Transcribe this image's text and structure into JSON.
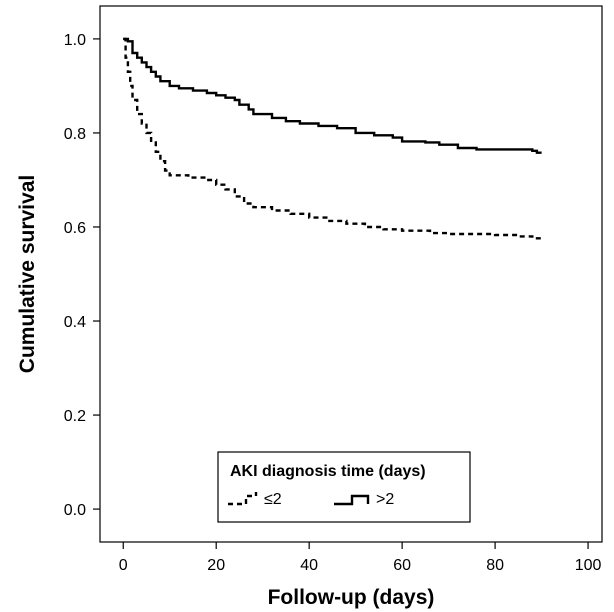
{
  "chart_data": {
    "type": "line",
    "xlabel": "Follow-up (days)",
    "ylabel": "Cumulative survival",
    "xlim": [
      -5,
      103
    ],
    "ylim": [
      -0.07,
      1.07
    ],
    "xticks": [
      0,
      20,
      40,
      60,
      80,
      100
    ],
    "xtick_labels": [
      "0",
      "20",
      "40",
      "60",
      "80",
      "100"
    ],
    "yticks": [
      0.0,
      0.2,
      0.4,
      0.6,
      0.8,
      1.0
    ],
    "ytick_labels": [
      "0.0",
      "0.2",
      "0.4",
      "0.6",
      "0.8",
      "1.0"
    ],
    "grid": false,
    "legend": {
      "title": "AKI diagnosis time (days)",
      "placement": "bottom-center"
    },
    "series": [
      {
        "name": "≤2",
        "style": "dashed",
        "step": true,
        "points": [
          [
            0,
            1.0
          ],
          [
            0.5,
            0.96
          ],
          [
            1,
            0.93
          ],
          [
            1.5,
            0.9
          ],
          [
            2,
            0.87
          ],
          [
            3,
            0.84
          ],
          [
            4,
            0.82
          ],
          [
            5,
            0.8
          ],
          [
            6,
            0.78
          ],
          [
            7,
            0.76
          ],
          [
            8,
            0.74
          ],
          [
            9,
            0.72
          ],
          [
            10,
            0.71
          ],
          [
            14,
            0.705
          ],
          [
            18,
            0.7
          ],
          [
            20,
            0.69
          ],
          [
            22,
            0.68
          ],
          [
            24,
            0.665
          ],
          [
            26,
            0.65
          ],
          [
            28,
            0.642
          ],
          [
            32,
            0.635
          ],
          [
            36,
            0.628
          ],
          [
            40,
            0.62
          ],
          [
            44,
            0.613
          ],
          [
            48,
            0.607
          ],
          [
            52,
            0.6
          ],
          [
            56,
            0.595
          ],
          [
            60,
            0.592
          ],
          [
            66,
            0.587
          ],
          [
            70,
            0.585
          ],
          [
            80,
            0.583
          ],
          [
            85,
            0.58
          ],
          [
            88,
            0.576
          ],
          [
            90,
            0.576
          ]
        ]
      },
      {
        "name": ">2",
        "style": "solid",
        "step": true,
        "points": [
          [
            0,
            1.0
          ],
          [
            1,
            0.995
          ],
          [
            2,
            0.97
          ],
          [
            3,
            0.96
          ],
          [
            4,
            0.95
          ],
          [
            5,
            0.94
          ],
          [
            6,
            0.93
          ],
          [
            7,
            0.92
          ],
          [
            8,
            0.91
          ],
          [
            10,
            0.9
          ],
          [
            12,
            0.895
          ],
          [
            15,
            0.89
          ],
          [
            18,
            0.885
          ],
          [
            20,
            0.88
          ],
          [
            22,
            0.875
          ],
          [
            24,
            0.87
          ],
          [
            25,
            0.86
          ],
          [
            27,
            0.85
          ],
          [
            28,
            0.84
          ],
          [
            32,
            0.832
          ],
          [
            35,
            0.825
          ],
          [
            38,
            0.82
          ],
          [
            42,
            0.815
          ],
          [
            46,
            0.81
          ],
          [
            50,
            0.8
          ],
          [
            54,
            0.795
          ],
          [
            58,
            0.79
          ],
          [
            60,
            0.782
          ],
          [
            65,
            0.78
          ],
          [
            68,
            0.775
          ],
          [
            72,
            0.768
          ],
          [
            76,
            0.765
          ],
          [
            86,
            0.765
          ],
          [
            88,
            0.762
          ],
          [
            89,
            0.758
          ],
          [
            90,
            0.758
          ]
        ]
      }
    ]
  }
}
